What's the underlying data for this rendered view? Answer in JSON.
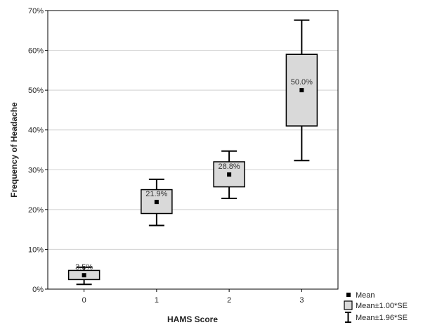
{
  "chart_data": {
    "type": "box",
    "xlabel": "HAMS Score",
    "ylabel": "Frequency of Headache",
    "categories": [
      "0",
      "1",
      "2",
      "3"
    ],
    "series": [
      {
        "name": "Mean",
        "values": [
          3.5,
          21.9,
          28.8,
          50.0
        ],
        "labels": [
          "3.5%",
          "21.9%",
          "28.8%",
          "50.0%"
        ]
      },
      {
        "name": "Mean±1.00*SE",
        "lower": [
          2.4,
          19.0,
          25.7,
          41.0
        ],
        "upper": [
          4.7,
          25.0,
          32.0,
          59.0
        ]
      },
      {
        "name": "Mean±1.96*SE",
        "lower": [
          1.2,
          16.0,
          22.8,
          32.3
        ],
        "upper": [
          5.5,
          27.6,
          34.7,
          67.6
        ]
      }
    ],
    "ylim": [
      0,
      70
    ],
    "yticks": [
      "0%",
      "10%",
      "20%",
      "30%",
      "40%",
      "50%",
      "60%",
      "70%"
    ],
    "grid": true,
    "legend": {
      "position": "bottom-right",
      "items": [
        "Mean",
        "Mean±1.00*SE",
        "Mean±1.96*SE"
      ]
    },
    "colors": {
      "box_fill": "#d9d9d9",
      "stroke": "#000000",
      "grid": "#cfcfcf"
    }
  }
}
